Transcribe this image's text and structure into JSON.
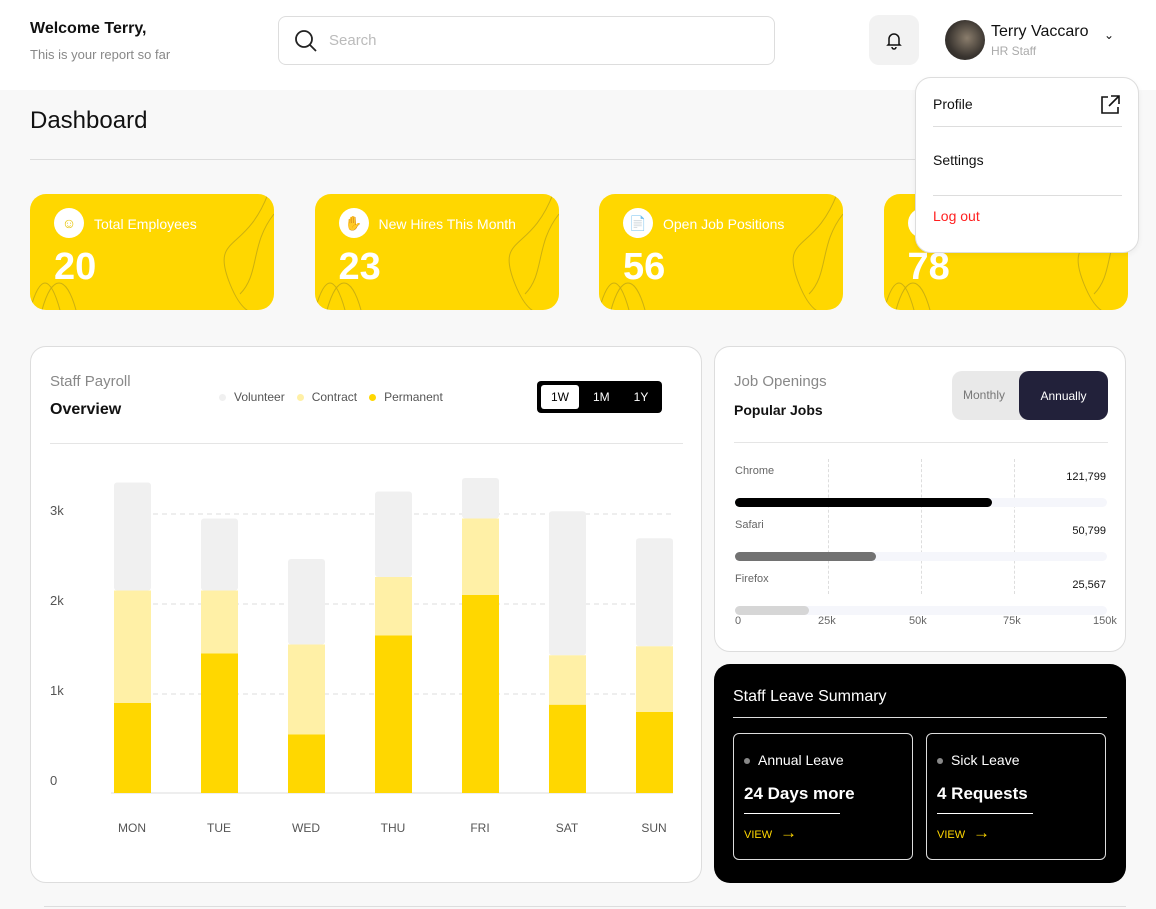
{
  "header": {
    "welcome": "Welcome Terry,",
    "subtitle": "This is your report so far",
    "search_placeholder": "Search",
    "user_name": "Terry Vaccaro",
    "user_role": "HR Staff"
  },
  "page_title": "Dashboard",
  "stats": [
    {
      "label": "Total Employees",
      "value": "20",
      "icon": "users-icon"
    },
    {
      "label": "New Hires This Month",
      "value": "23",
      "icon": "hand-coin-icon"
    },
    {
      "label": "Open Job Positions",
      "value": "56",
      "icon": "document-icon"
    },
    {
      "label": "",
      "value": "78",
      "icon": "circle-icon"
    }
  ],
  "user_menu": {
    "profile": "Profile",
    "settings": "Settings",
    "logout": "Log out"
  },
  "payroll": {
    "title": "Staff Payroll",
    "subtitle": "Overview",
    "ranges": [
      "1W",
      "1M",
      "1Y"
    ],
    "selected_range": "1W"
  },
  "chart_data": {
    "type": "bar",
    "stacked": true,
    "categories": [
      "MON",
      "TUE",
      "WED",
      "THU",
      "FRI",
      "SAT",
      "SUN"
    ],
    "yticks": [
      "0",
      "1k",
      "2k",
      "3k"
    ],
    "ylim": [
      0,
      3500
    ],
    "grid": true,
    "legend": "top",
    "series": [
      {
        "name": "Permanent",
        "color": "#FFD700",
        "values": [
          1000,
          1550,
          650,
          1750,
          2200,
          980,
          900
        ]
      },
      {
        "name": "Contract",
        "color": "#FFF0A6",
        "values": [
          1250,
          700,
          1000,
          650,
          850,
          550,
          730
        ]
      },
      {
        "name": "Volunteer",
        "color": "#F0F0F0",
        "values": [
          1200,
          800,
          950,
          950,
          450,
          1600,
          1200
        ]
      }
    ]
  },
  "jobs": {
    "title": "Job Openings",
    "subtitle": "Popular Jobs",
    "toggle": [
      "Monthly",
      "Annually"
    ],
    "selected": "Annually",
    "axis": [
      "0",
      "25k",
      "50k",
      "75k",
      "150k"
    ],
    "rows": [
      {
        "label": "Chrome",
        "value": "121,799",
        "fill": 0.69,
        "color": "#000000"
      },
      {
        "label": "Safari",
        "value": "50,799",
        "fill": 0.38,
        "color": "#727272"
      },
      {
        "label": "Firefox",
        "value": "25,567",
        "fill": 0.2,
        "color": "#d6d6d6"
      }
    ]
  },
  "leave": {
    "title": "Staff Leave Summary",
    "items": [
      {
        "label": "Annual Leave",
        "value": "24 Days more",
        "link": "VIEW"
      },
      {
        "label": "Sick Leave",
        "value": "4 Requests",
        "link": "VIEW"
      }
    ]
  },
  "colors": {
    "accent": "#FFD700",
    "danger": "#FF1F1F",
    "dark": "#22213A"
  }
}
